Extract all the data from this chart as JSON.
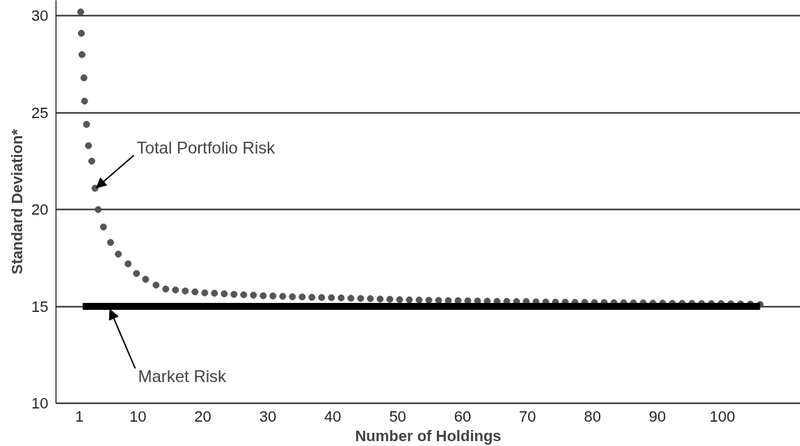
{
  "chart_data": {
    "type": "scatter",
    "xlabel": "Number of Holdings",
    "ylabel": "Standard Deviation*",
    "xlim": [
      -2.6,
      112
    ],
    "ylim": [
      10,
      30.8
    ],
    "xticks": [
      1,
      10,
      20,
      30,
      40,
      50,
      60,
      70,
      80,
      90,
      100
    ],
    "yticks": [
      10,
      15,
      20,
      25,
      30
    ],
    "grid": "y",
    "series": [
      {
        "marker": "circle",
        "color": "#555555",
        "x": [
          1.2,
          1.3,
          1.4,
          1.7,
          1.8,
          2.1,
          2.4,
          2.9,
          3.4,
          3.9,
          4.7,
          5.8,
          7,
          8.5,
          9.8,
          11.2,
          12.8,
          14.3,
          15.8,
          17.3,
          18.8,
          20.3,
          21.8,
          23.3,
          24.8,
          26.3,
          27.8,
          29.3,
          30.8,
          32.3,
          33.8,
          35.3,
          36.8,
          38.3,
          39.8,
          41.3,
          42.8,
          44.3,
          45.8,
          47.3,
          48.8,
          50.3,
          51.8,
          53.3,
          54.8,
          56.3,
          57.8,
          59.3,
          60.8,
          62.3,
          63.8,
          65.3,
          66.8,
          68.3,
          69.8,
          71.3,
          72.8,
          74.3,
          75.8,
          77.3,
          78.8,
          80.3,
          81.8,
          83.3,
          84.8,
          86.3,
          87.8,
          89.3,
          90.8,
          92.3,
          93.8,
          95.3,
          96.8,
          98.3,
          99.8,
          101.3,
          102.8,
          104.3,
          105.8
        ],
        "values": [
          30.2,
          29.1,
          28,
          26.8,
          25.6,
          24.4,
          23.3,
          22.5,
          21.1,
          20,
          19.1,
          18.3,
          17.7,
          17.2,
          16.7,
          16.4,
          16.1,
          15.9,
          15.85,
          15.8,
          15.75,
          15.7,
          15.68,
          15.65,
          15.62,
          15.6,
          15.58,
          15.55,
          15.54,
          15.52,
          15.5,
          15.49,
          15.47,
          15.46,
          15.45,
          15.44,
          15.42,
          15.41,
          15.4,
          15.38,
          15.37,
          15.35,
          15.34,
          15.33,
          15.32,
          15.31,
          15.3,
          15.3,
          15.29,
          15.28,
          15.27,
          15.26,
          15.26,
          15.25,
          15.25,
          15.24,
          15.23,
          15.22,
          15.22,
          15.21,
          15.21,
          15.2,
          15.2,
          15.19,
          15.19,
          15.18,
          15.18,
          15.17,
          15.17,
          15.16,
          15.16,
          15.16,
          15.15,
          15.15,
          15.15,
          15.14,
          15.13,
          15.12,
          15.1
        ]
      },
      {
        "type": "line",
        "color": "#000000",
        "x": [
          1.5,
          105.8
        ],
        "values": [
          15,
          15
        ]
      }
    ],
    "annotations": [
      {
        "text": "Total Portfolio Risk",
        "x": 3.4,
        "y": 21.0
      },
      {
        "text": "Market Risk",
        "x": 5.6,
        "y": 15
      }
    ]
  }
}
